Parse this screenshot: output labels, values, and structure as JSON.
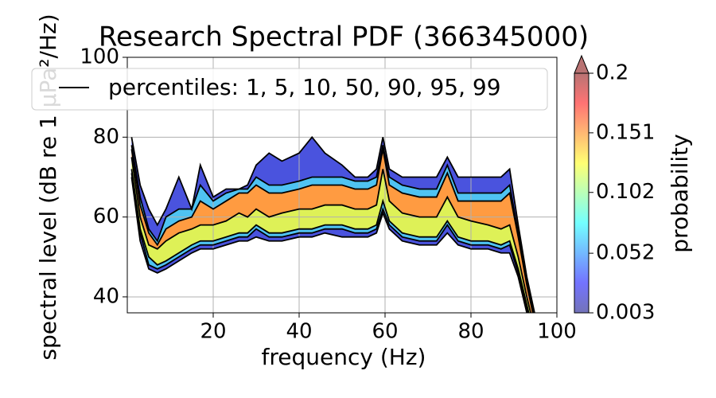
{
  "chart_data": {
    "type": "spectral-pdf",
    "title": "Research Spectral PDF (366345000)",
    "xlabel": "frequency (Hz)",
    "ylabel": "spectral level (dB re 1 µPa²/Hz)",
    "legend": "percentiles: 1, 5, 10, 50, 90, 95, 99",
    "legend_loc": "upper left",
    "grid": true,
    "xlim": [
      0,
      100
    ],
    "xticks": [
      20,
      40,
      60,
      80,
      100
    ],
    "ylim": [
      36,
      100
    ],
    "yticks": [
      40,
      60,
      80,
      100
    ],
    "x": [
      1,
      3,
      5,
      7,
      9,
      12,
      15,
      17,
      20,
      23,
      26,
      28,
      30,
      33,
      36,
      40,
      43,
      46,
      50,
      53,
      56,
      58,
      59.5,
      61,
      64,
      68,
      72,
      74.5,
      77,
      80,
      84,
      87,
      89,
      91,
      93,
      95
    ],
    "band_colors": [
      "#2a35d8",
      "#30b8f0",
      "#d8ee3a",
      "#ff8a20",
      "#30b8f0",
      "#2a35d8"
    ],
    "series": [
      {
        "color": "#000000",
        "values": [
          70,
          54,
          47,
          46,
          47,
          49,
          51,
          52,
          52,
          53,
          54,
          54,
          55,
          54,
          54,
          55,
          55,
          56,
          55,
          55,
          55,
          56,
          61,
          57,
          54,
          53,
          53,
          56,
          53,
          52,
          52,
          51,
          51,
          45,
          36,
          27
        ]
      },
      {
        "color": "#000000",
        "values": [
          71,
          56,
          48,
          47,
          48,
          50,
          52,
          53,
          53,
          54,
          55,
          55,
          57,
          55,
          55,
          56,
          56,
          57,
          57,
          56,
          56,
          57,
          62,
          58,
          55,
          54,
          54,
          58,
          54,
          53,
          53,
          52,
          53,
          46,
          37,
          28
        ]
      },
      {
        "color": "#000000",
        "values": [
          72,
          57,
          50,
          48,
          49,
          51,
          53,
          54,
          54,
          55,
          56,
          56,
          58,
          56,
          56,
          57,
          57,
          58,
          58,
          57,
          57,
          58,
          64,
          59,
          56,
          55,
          55,
          59,
          55,
          54,
          54,
          53,
          54,
          47,
          38,
          29
        ]
      },
      {
        "color": "#000000",
        "values": [
          75,
          60,
          53,
          52,
          54,
          56,
          57,
          58,
          58,
          59,
          61,
          60,
          62,
          60,
          61,
          62,
          62,
          63,
          63,
          62,
          62,
          63,
          72,
          64,
          61,
          60,
          60,
          65,
          60,
          59,
          58,
          57,
          58,
          50,
          40,
          31
        ]
      },
      {
        "color": "#000000",
        "values": [
          77,
          63,
          56,
          53,
          57,
          59,
          60,
          64,
          62,
          64,
          66,
          66,
          68,
          66,
          66,
          67,
          68,
          68,
          68,
          67,
          67,
          68,
          77,
          68,
          66,
          65,
          65,
          71,
          64,
          64,
          64,
          64,
          66,
          55,
          43,
          33
        ]
      },
      {
        "color": "#000000",
        "values": [
          78,
          65,
          57,
          54,
          60,
          62,
          62,
          68,
          64,
          66,
          67,
          67,
          70,
          68,
          68,
          69,
          70,
          70,
          70,
          69,
          69,
          70,
          78,
          70,
          68,
          67,
          67,
          73,
          66,
          66,
          66,
          66,
          68,
          56,
          44,
          34
        ]
      },
      {
        "color": "#000000",
        "values": [
          80,
          68,
          62,
          58,
          62,
          70,
          62,
          73,
          65,
          67,
          67,
          68,
          73,
          76,
          74,
          76,
          80,
          76,
          73,
          70,
          70,
          72,
          80,
          72,
          70,
          70,
          70,
          75,
          70,
          70,
          70,
          70,
          72,
          58,
          45,
          35
        ]
      }
    ],
    "colorbar": {
      "label": "probability",
      "lim": [
        0.003,
        0.2
      ],
      "ticks": [
        0.003,
        0.052,
        0.102,
        0.151,
        0.2
      ]
    }
  }
}
